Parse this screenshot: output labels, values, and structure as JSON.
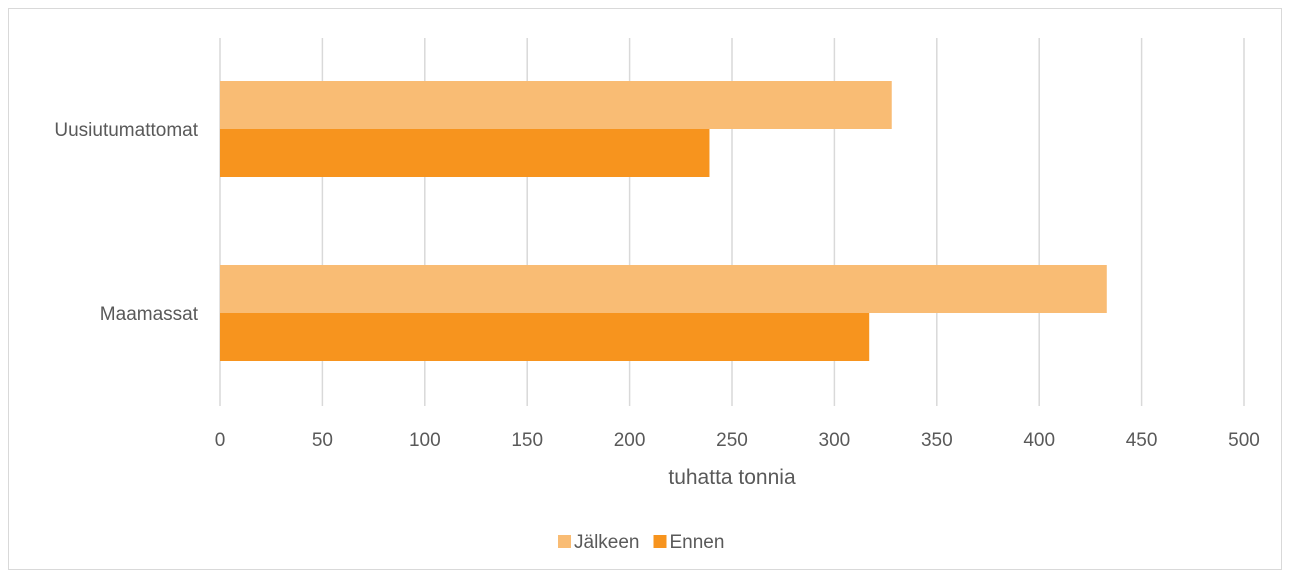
{
  "chart_data": {
    "type": "bar",
    "orientation": "horizontal",
    "categories": [
      "Uusiutumattomat",
      "Maamassat"
    ],
    "series": [
      {
        "name": "Jälkeen",
        "values": [
          328,
          433
        ],
        "color": "#f9bc74"
      },
      {
        "name": "Ennen",
        "values": [
          239,
          317
        ],
        "color": "#f7941e"
      }
    ],
    "xlabel": "tuhatta tonnia",
    "xlim": [
      0,
      500
    ],
    "xticks": [
      "0",
      "50",
      "100",
      "150",
      "200",
      "250",
      "300",
      "350",
      "400",
      "450",
      "500"
    ],
    "grid": "vertical",
    "legend_position": "bottom"
  }
}
